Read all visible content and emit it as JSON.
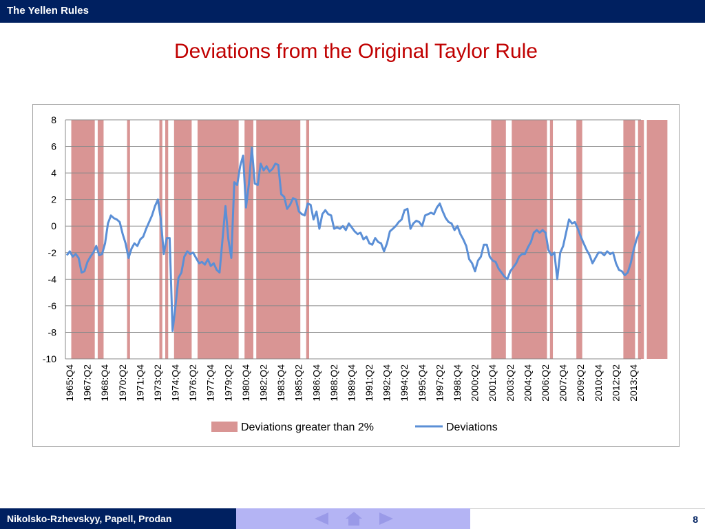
{
  "header": {
    "title": "The Yellen Rules"
  },
  "slide": {
    "title": "Deviations from the Original Taylor Rule"
  },
  "footer": {
    "authors": "Nikolsko-Rzhevskyy, Papell, Prodan",
    "page_number": "8"
  },
  "colors": {
    "band": "#d99594",
    "line": "#5b8fd6",
    "bar": "#002060",
    "title": "#c00000"
  },
  "chart_data": {
    "type": "line",
    "title": "",
    "xlabel": "",
    "ylabel": "",
    "ylim": [
      -10,
      8
    ],
    "yticks": [
      8,
      6,
      4,
      2,
      0,
      -2,
      -4,
      -6,
      -8,
      -10
    ],
    "grid": true,
    "x_start": "1965:Q4",
    "x_end": "2014:Q3",
    "n_quarters": 196,
    "x_tick_labels": [
      "1965:Q4",
      "1967:Q2",
      "1968:Q4",
      "1970:Q2",
      "1971:Q4",
      "1973:Q2",
      "1974:Q4",
      "1976:Q2",
      "1977:Q4",
      "1979:Q2",
      "1980:Q4",
      "1982:Q2",
      "1983:Q4",
      "1985:Q2",
      "1986:Q4",
      "1988:Q2",
      "1989:Q4",
      "1991:Q2",
      "1992:Q4",
      "1994:Q2",
      "1995:Q4",
      "1997:Q2",
      "1998:Q4",
      "2000:Q2",
      "2001:Q4",
      "2003:Q2",
      "2004:Q4",
      "2006:Q2",
      "2007:Q4",
      "2009:Q2",
      "2010:Q4",
      "2012:Q2",
      "2013:Q4"
    ],
    "legend": {
      "position": "bottom",
      "bands_label": "Deviations greater than 2%",
      "line_label": "Deviations"
    },
    "series": [
      {
        "name": "Deviations",
        "anchors": [
          [
            0,
            -2.2
          ],
          [
            1,
            -1.9
          ],
          [
            2,
            -2.3
          ],
          [
            3,
            -2.1
          ],
          [
            4,
            -2.4
          ],
          [
            5,
            -3.5
          ],
          [
            6,
            -3.4
          ],
          [
            7,
            -2.7
          ],
          [
            8,
            -2.3
          ],
          [
            9,
            -2.0
          ],
          [
            10,
            -1.5
          ],
          [
            11,
            -2.2
          ],
          [
            12,
            -2.1
          ],
          [
            13,
            -1.3
          ],
          [
            14,
            0.2
          ],
          [
            15,
            0.8
          ],
          [
            16,
            0.6
          ],
          [
            17,
            0.5
          ],
          [
            18,
            0.3
          ],
          [
            19,
            -0.6
          ],
          [
            20,
            -1.3
          ],
          [
            21,
            -2.4
          ],
          [
            22,
            -1.7
          ],
          [
            23,
            -1.3
          ],
          [
            24,
            -1.5
          ],
          [
            25,
            -1.0
          ],
          [
            26,
            -0.8
          ],
          [
            27,
            -0.2
          ],
          [
            28,
            0.3
          ],
          [
            29,
            0.8
          ],
          [
            30,
            1.5
          ],
          [
            31,
            2.0
          ],
          [
            32,
            0.5
          ],
          [
            33,
            -2.1
          ],
          [
            34,
            -0.9
          ],
          [
            35,
            -0.9
          ],
          [
            36,
            -7.9
          ],
          [
            37,
            -6.0
          ],
          [
            38,
            -3.9
          ],
          [
            39,
            -3.5
          ],
          [
            40,
            -2.3
          ],
          [
            41,
            -1.9
          ],
          [
            42,
            -2.1
          ],
          [
            43,
            -2.0
          ],
          [
            44,
            -2.4
          ],
          [
            45,
            -2.8
          ],
          [
            46,
            -2.7
          ],
          [
            47,
            -2.9
          ],
          [
            48,
            -2.5
          ],
          [
            49,
            -3.0
          ],
          [
            50,
            -2.8
          ],
          [
            51,
            -3.3
          ],
          [
            52,
            -3.5
          ],
          [
            53,
            -1.0
          ],
          [
            54,
            1.5
          ],
          [
            55,
            -1.0
          ],
          [
            56,
            -2.4
          ],
          [
            57,
            3.3
          ],
          [
            58,
            3.1
          ],
          [
            59,
            4.5
          ],
          [
            60,
            5.3
          ],
          [
            61,
            1.4
          ],
          [
            62,
            3.2
          ],
          [
            63,
            5.9
          ],
          [
            64,
            3.2
          ],
          [
            65,
            3.1
          ],
          [
            66,
            4.7
          ],
          [
            67,
            4.2
          ],
          [
            68,
            4.5
          ],
          [
            69,
            4.1
          ],
          [
            70,
            4.3
          ],
          [
            71,
            4.7
          ],
          [
            72,
            4.6
          ],
          [
            73,
            2.4
          ],
          [
            74,
            2.2
          ],
          [
            75,
            1.3
          ],
          [
            76,
            1.6
          ],
          [
            77,
            2.1
          ],
          [
            78,
            2.0
          ],
          [
            79,
            1.1
          ],
          [
            80,
            0.9
          ],
          [
            81,
            0.8
          ],
          [
            82,
            1.7
          ],
          [
            83,
            1.6
          ],
          [
            84,
            0.5
          ],
          [
            85,
            1.1
          ],
          [
            86,
            -0.2
          ],
          [
            87,
            0.9
          ],
          [
            88,
            1.2
          ],
          [
            89,
            0.9
          ],
          [
            90,
            0.8
          ],
          [
            91,
            -0.2
          ],
          [
            92,
            -0.1
          ],
          [
            93,
            -0.2
          ],
          [
            94,
            0.0
          ],
          [
            95,
            -0.3
          ],
          [
            96,
            0.2
          ],
          [
            97,
            -0.1
          ],
          [
            98,
            -0.4
          ],
          [
            99,
            -0.6
          ],
          [
            100,
            -0.5
          ],
          [
            101,
            -1.0
          ],
          [
            102,
            -0.8
          ],
          [
            103,
            -1.3
          ],
          [
            104,
            -1.4
          ],
          [
            105,
            -0.9
          ],
          [
            106,
            -1.2
          ],
          [
            107,
            -1.3
          ],
          [
            108,
            -1.9
          ],
          [
            109,
            -1.3
          ],
          [
            110,
            -0.4
          ],
          [
            111,
            -0.2
          ],
          [
            112,
            0.0
          ],
          [
            113,
            0.3
          ],
          [
            114,
            0.5
          ],
          [
            115,
            1.2
          ],
          [
            116,
            1.3
          ],
          [
            117,
            -0.2
          ],
          [
            118,
            0.2
          ],
          [
            119,
            0.4
          ],
          [
            120,
            0.3
          ],
          [
            121,
            0.0
          ],
          [
            122,
            0.8
          ],
          [
            123,
            0.9
          ],
          [
            124,
            1.0
          ],
          [
            125,
            0.9
          ],
          [
            126,
            1.4
          ],
          [
            127,
            1.7
          ],
          [
            128,
            1.1
          ],
          [
            129,
            0.6
          ],
          [
            130,
            0.3
          ],
          [
            131,
            0.2
          ],
          [
            132,
            -0.3
          ],
          [
            133,
            0.0
          ],
          [
            134,
            -0.6
          ],
          [
            135,
            -1.0
          ],
          [
            136,
            -1.5
          ],
          [
            137,
            -2.5
          ],
          [
            138,
            -2.8
          ],
          [
            139,
            -3.4
          ],
          [
            140,
            -2.6
          ],
          [
            141,
            -2.3
          ],
          [
            142,
            -1.4
          ],
          [
            143,
            -1.4
          ],
          [
            144,
            -2.3
          ],
          [
            145,
            -2.6
          ],
          [
            146,
            -2.7
          ],
          [
            147,
            -3.2
          ],
          [
            148,
            -3.5
          ],
          [
            149,
            -3.8
          ],
          [
            150,
            -4.0
          ],
          [
            151,
            -3.4
          ],
          [
            152,
            -3.1
          ],
          [
            153,
            -2.8
          ],
          [
            154,
            -2.3
          ],
          [
            155,
            -2.1
          ],
          [
            156,
            -2.1
          ],
          [
            157,
            -1.6
          ],
          [
            158,
            -1.2
          ],
          [
            159,
            -0.5
          ],
          [
            160,
            -0.3
          ],
          [
            161,
            -0.5
          ],
          [
            162,
            -0.3
          ],
          [
            163,
            -0.5
          ],
          [
            164,
            -1.8
          ],
          [
            165,
            -2.2
          ],
          [
            166,
            -2.0
          ],
          [
            167,
            -4.0
          ],
          [
            168,
            -2.0
          ],
          [
            169,
            -1.5
          ],
          [
            170,
            -0.5
          ],
          [
            171,
            0.5
          ],
          [
            172,
            0.2
          ],
          [
            173,
            0.3
          ],
          [
            174,
            -0.2
          ],
          [
            175,
            -0.8
          ],
          [
            176,
            -1.3
          ],
          [
            177,
            -1.8
          ],
          [
            178,
            -2.2
          ],
          [
            179,
            -2.8
          ],
          [
            180,
            -2.4
          ],
          [
            181,
            -2.0
          ],
          [
            182,
            -2.0
          ],
          [
            183,
            -2.2
          ],
          [
            184,
            -1.9
          ],
          [
            185,
            -2.1
          ],
          [
            186,
            -2.0
          ],
          [
            187,
            -2.8
          ],
          [
            188,
            -3.3
          ],
          [
            189,
            -3.4
          ],
          [
            190,
            -3.7
          ],
          [
            191,
            -3.5
          ],
          [
            192,
            -2.8
          ],
          [
            193,
            -1.8
          ],
          [
            194,
            -1.0
          ],
          [
            195,
            -0.4
          ]
        ]
      },
      {
        "name": "Deviations greater than 2%",
        "bands_quarters": [
          [
            2,
            9
          ],
          [
            11,
            12
          ],
          [
            21,
            21
          ],
          [
            32,
            32
          ],
          [
            34,
            34
          ],
          [
            37,
            42
          ],
          [
            45,
            58
          ],
          [
            61,
            63
          ],
          [
            65,
            79
          ],
          [
            82,
            82
          ],
          [
            145,
            149
          ],
          [
            152,
            163
          ],
          [
            165,
            165
          ],
          [
            174,
            175
          ],
          [
            190,
            193
          ],
          [
            195,
            196
          ],
          [
            198,
            204
          ]
        ]
      }
    ]
  }
}
